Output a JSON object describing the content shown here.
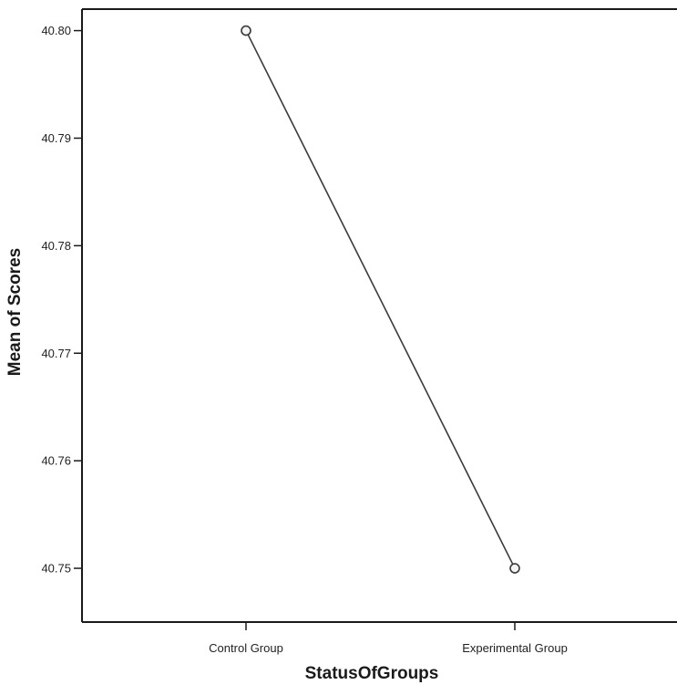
{
  "chart_data": {
    "type": "line",
    "title": "",
    "xlabel": "StatusOfGroups",
    "ylabel": "Mean of Scores",
    "categories": [
      "Control Group",
      "Experimental Group"
    ],
    "series": [
      {
        "values": [
          40.8,
          40.75
        ]
      }
    ],
    "ylim": [
      40.745,
      40.802
    ],
    "yticks": [
      40.75,
      40.76,
      40.77,
      40.78,
      40.79,
      40.8
    ],
    "ytick_labels": [
      "40.75",
      "40.76",
      "40.77",
      "40.78",
      "40.79",
      "40.80"
    ],
    "grid": false,
    "legend": "none",
    "colors": {
      "line": "#3a3a3a",
      "marker_fill": "#f4f4f4",
      "axis": "#1a1a1a"
    }
  }
}
